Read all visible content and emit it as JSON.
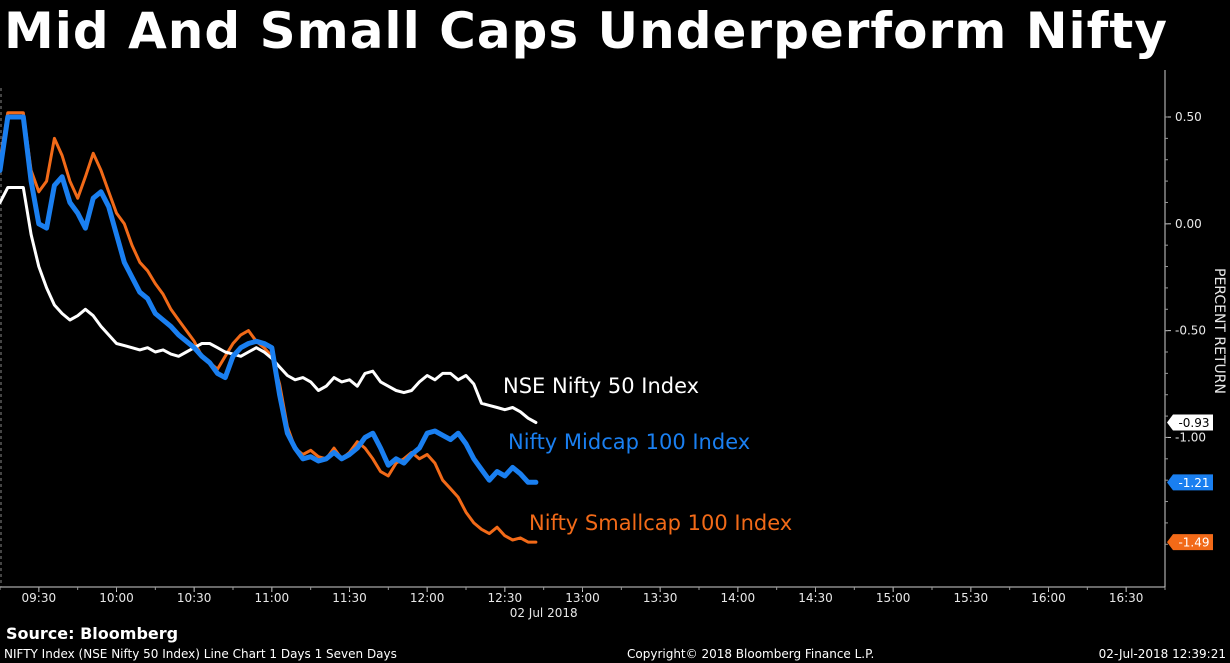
{
  "title": "Mid And Small Caps Underperform Nifty",
  "source": "Source: Bloomberg",
  "footer": {
    "left": "NIFTY Index (NSE Nifty 50 Index) Line Chart 1 Days 1 Seven Days",
    "center": "Copyright© 2018 Bloomberg Finance L.P.",
    "right": "02-Jul-2018 12:39:21"
  },
  "chart_data": {
    "type": "line",
    "title": "Mid And Small Caps Underperform Nifty",
    "ylabel": "PERCENT RETURN",
    "xlabel": "02 Jul 2018",
    "ylim": [
      -1.7,
      0.72
    ],
    "xlim": [
      "09:15",
      "16:45"
    ],
    "x_ticks": [
      "09:30",
      "10:00",
      "10:30",
      "11:00",
      "11:30",
      "12:00",
      "12:30",
      "13:00",
      "13:30",
      "14:00",
      "14:30",
      "15:00",
      "15:30",
      "16:00",
      "16:30"
    ],
    "x_date_label": "02 Jul 2018",
    "y_ticks": [
      0.5,
      0.0,
      -0.5,
      -1.0
    ],
    "y_tick_labels": [
      "0.50",
      "0.00",
      "-0.50",
      "-1.00"
    ],
    "x_minutes": [
      0,
      3,
      6,
      9,
      12,
      15,
      18,
      21,
      24,
      27,
      30,
      33,
      36,
      39,
      42,
      45,
      48,
      51,
      54,
      57,
      60,
      63,
      66,
      69,
      72,
      75,
      78,
      81,
      84,
      87,
      90,
      93,
      96,
      99,
      102,
      105,
      108,
      111,
      114,
      117,
      120,
      123,
      126,
      129,
      132,
      135,
      138,
      141,
      144,
      147,
      150,
      153,
      156,
      159,
      162,
      165,
      168,
      171,
      174,
      177,
      180,
      183,
      186,
      189,
      192,
      195,
      198,
      201,
      204,
      207
    ],
    "series": [
      {
        "name": "NSE Nifty 50 Index",
        "color": "#ffffff",
        "last_label": "-0.93",
        "values": [
          0.1,
          0.17,
          0.17,
          0.17,
          -0.05,
          -0.2,
          -0.3,
          -0.38,
          -0.42,
          -0.45,
          -0.43,
          -0.4,
          -0.43,
          -0.48,
          -0.52,
          -0.56,
          -0.57,
          -0.58,
          -0.59,
          -0.58,
          -0.6,
          -0.59,
          -0.61,
          -0.62,
          -0.6,
          -0.58,
          -0.56,
          -0.56,
          -0.58,
          -0.6,
          -0.61,
          -0.62,
          -0.6,
          -0.58,
          -0.6,
          -0.63,
          -0.67,
          -0.71,
          -0.73,
          -0.72,
          -0.74,
          -0.78,
          -0.76,
          -0.72,
          -0.74,
          -0.73,
          -0.76,
          -0.7,
          -0.69,
          -0.74,
          -0.76,
          -0.78,
          -0.79,
          -0.78,
          -0.74,
          -0.71,
          -0.73,
          -0.7,
          -0.7,
          -0.73,
          -0.71,
          -0.75,
          -0.84,
          -0.85,
          -0.86,
          -0.87,
          -0.86,
          -0.88,
          -0.91,
          -0.93
        ]
      },
      {
        "name": "Nifty Midcap 100 Index",
        "color": "#1a7ff0",
        "last_label": "-1.21",
        "values": [
          0.25,
          0.5,
          0.5,
          0.5,
          0.2,
          0.0,
          -0.02,
          0.18,
          0.22,
          0.1,
          0.05,
          -0.02,
          0.12,
          0.15,
          0.08,
          -0.05,
          -0.18,
          -0.25,
          -0.32,
          -0.35,
          -0.42,
          -0.45,
          -0.48,
          -0.52,
          -0.55,
          -0.58,
          -0.62,
          -0.65,
          -0.7,
          -0.72,
          -0.62,
          -0.58,
          -0.56,
          -0.55,
          -0.56,
          -0.58,
          -0.8,
          -0.98,
          -1.05,
          -1.1,
          -1.09,
          -1.11,
          -1.1,
          -1.07,
          -1.1,
          -1.08,
          -1.05,
          -1.0,
          -0.98,
          -1.05,
          -1.13,
          -1.1,
          -1.12,
          -1.08,
          -1.05,
          -0.98,
          -0.97,
          -0.99,
          -1.01,
          -0.98,
          -1.03,
          -1.1,
          -1.15,
          -1.2,
          -1.16,
          -1.18,
          -1.14,
          -1.17,
          -1.21,
          -1.21
        ]
      },
      {
        "name": "Nifty Smallcap 100 Index",
        "color": "#f26a18",
        "last_label": "-1.49",
        "values": [
          0.3,
          0.52,
          0.52,
          0.52,
          0.25,
          0.15,
          0.2,
          0.4,
          0.32,
          0.2,
          0.12,
          0.22,
          0.33,
          0.25,
          0.15,
          0.05,
          0.0,
          -0.1,
          -0.18,
          -0.22,
          -0.28,
          -0.33,
          -0.4,
          -0.45,
          -0.5,
          -0.55,
          -0.62,
          -0.65,
          -0.68,
          -0.62,
          -0.56,
          -0.52,
          -0.5,
          -0.55,
          -0.58,
          -0.62,
          -0.75,
          -0.95,
          -1.05,
          -1.08,
          -1.06,
          -1.09,
          -1.1,
          -1.05,
          -1.1,
          -1.07,
          -1.02,
          -1.05,
          -1.1,
          -1.16,
          -1.18,
          -1.12,
          -1.1,
          -1.07,
          -1.1,
          -1.08,
          -1.12,
          -1.2,
          -1.24,
          -1.28,
          -1.35,
          -1.4,
          -1.43,
          -1.45,
          -1.42,
          -1.46,
          -1.48,
          -1.47,
          -1.49,
          -1.49
        ]
      }
    ]
  }
}
